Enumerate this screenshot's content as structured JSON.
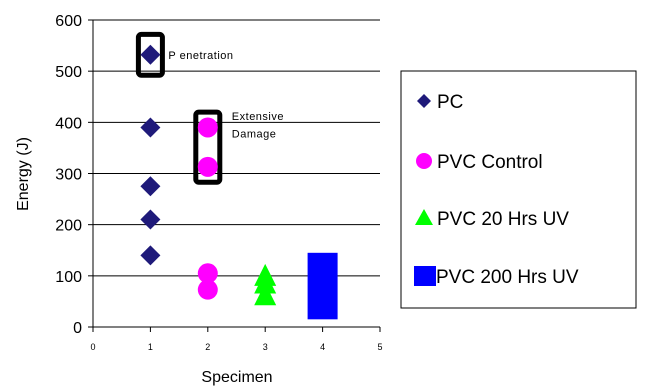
{
  "chart_data": {
    "type": "scatter",
    "title": "",
    "xlabel": "Specimen",
    "ylabel": "Energy (J)",
    "xlim": [
      0,
      5
    ],
    "ylim": [
      0,
      600
    ],
    "x_ticks": [
      "0",
      "1",
      "2",
      "3",
      "4",
      "5"
    ],
    "y_ticks": [
      "0",
      "100",
      "200",
      "300",
      "400",
      "500",
      "600"
    ],
    "grid": "horizontal",
    "legend_position": "right",
    "series": [
      {
        "name": "PC",
        "marker": "diamond",
        "color": "#1f1a7a",
        "x": [
          1,
          1,
          1,
          1,
          1
        ],
        "y": [
          140,
          210,
          275,
          390,
          532
        ]
      },
      {
        "name": "PVC Control",
        "marker": "circle",
        "color": "#ff00ff",
        "x": [
          2,
          2,
          2,
          2
        ],
        "y": [
          390,
          313,
          105,
          73
        ]
      },
      {
        "name": "PVC 20 Hrs UV",
        "marker": "triangle",
        "color": "#00ff00",
        "x": [
          3,
          3,
          3
        ],
        "y": [
          100,
          85,
          62
        ]
      },
      {
        "name": "PVC 200 Hrs UV",
        "marker": "square",
        "color": "#0000ff",
        "x": [
          4
        ],
        "y": [
          80
        ],
        "y_range": [
          15,
          145
        ]
      }
    ],
    "annotations": [
      {
        "text": "P enetration",
        "series": "PC",
        "x": 1,
        "y": 532
      },
      {
        "text_line1": "Extensive",
        "text_line2": "Damage",
        "series": "PVC Control",
        "x": 2,
        "y": 350
      }
    ]
  }
}
